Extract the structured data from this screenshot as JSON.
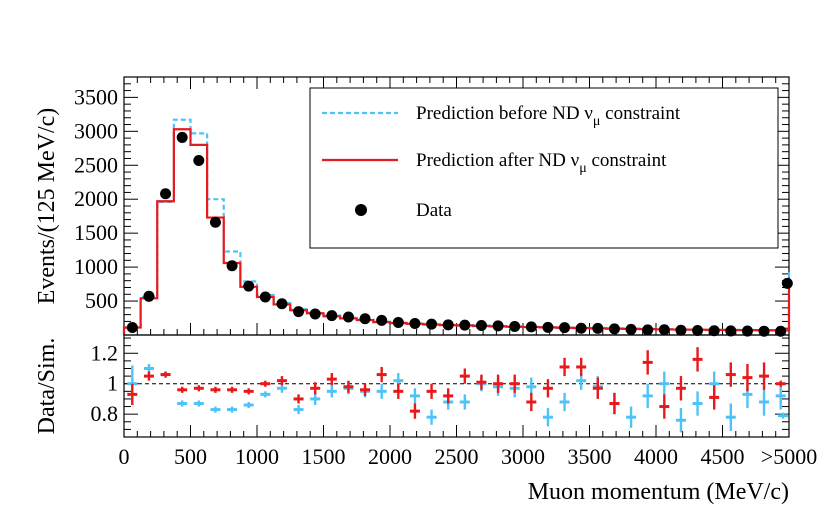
{
  "chart_data": {
    "type": "line",
    "title": "",
    "xlabel": "Muon momentum (MeV/c)",
    "x_tick_labels": [
      "0",
      "500",
      "1000",
      "1500",
      "2000",
      "2500",
      "3000",
      "3500",
      "4000",
      "4500",
      ">5000"
    ],
    "x_tick_values": [
      0,
      500,
      1000,
      1500,
      2000,
      2500,
      3000,
      3500,
      4000,
      4500,
      5000
    ],
    "xlim": [
      0,
      5000
    ],
    "bin_width": 125,
    "overflow_bin_label": ">5000",
    "colors": {
      "before": "#4fc3f7",
      "after": "#e8191a",
      "data": "#000000",
      "reference": "#000000"
    },
    "top_panel": {
      "ylabel": "Events/(125 MeV/c)",
      "ylim": [
        0,
        3800
      ],
      "y_tick_labels": [
        "500",
        "1000",
        "1500",
        "2000",
        "2500",
        "3000",
        "3500"
      ],
      "y_tick_values": [
        500,
        1000,
        1500,
        2000,
        2500,
        3000,
        3500
      ],
      "legend": {
        "placement": "top-right",
        "entries": [
          {
            "series": "before",
            "label": "Prediction before ND ν",
            "sub": "μ",
            "suffix": " constraint"
          },
          {
            "series": "after",
            "label": "Prediction after ND ν",
            "sub": "μ",
            "suffix": " constraint"
          },
          {
            "series": "data",
            "label": "Data",
            "sub": "",
            "suffix": ""
          }
        ]
      },
      "series": [
        {
          "name": "before",
          "style": "dashed-histogram",
          "values": [
            110,
            560,
            1960,
            3170,
            2970,
            2000,
            1230,
            790,
            590,
            470,
            380,
            330,
            285,
            255,
            225,
            195,
            180,
            170,
            160,
            150,
            145,
            138,
            130,
            125,
            120,
            115,
            110,
            105,
            100,
            96,
            92,
            88,
            85,
            82,
            80,
            78,
            76,
            73,
            71,
            69,
            950
          ]
        },
        {
          "name": "after",
          "style": "solid-histogram",
          "values": [
            110,
            540,
            1970,
            3030,
            2800,
            1730,
            1060,
            710,
            560,
            450,
            365,
            320,
            275,
            245,
            220,
            190,
            175,
            165,
            155,
            145,
            140,
            133,
            127,
            122,
            117,
            112,
            107,
            103,
            98,
            94,
            90,
            86,
            83,
            80,
            78,
            76,
            74,
            72,
            70,
            68,
            770
          ]
        },
        {
          "name": "data",
          "style": "markers",
          "values": [
            110,
            570,
            2080,
            2910,
            2570,
            1660,
            1020,
            720,
            560,
            460,
            345,
            310,
            285,
            265,
            240,
            215,
            185,
            170,
            160,
            150,
            145,
            140,
            135,
            125,
            120,
            112,
            108,
            100,
            97,
            90,
            82,
            76,
            78,
            70,
            66,
            62,
            60,
            58,
            56,
            55,
            760
          ]
        }
      ]
    },
    "bottom_panel": {
      "ylabel": "Data/Sim.",
      "ylim": [
        0.65,
        1.32
      ],
      "y_tick_labels": [
        "0.8",
        "1",
        "1.2"
      ],
      "y_tick_values": [
        0.8,
        1.0,
        1.2
      ],
      "reference_line": 1.0,
      "series": [
        {
          "name": "before",
          "values": [
            1.0,
            1.1,
            1.06,
            0.87,
            0.87,
            0.83,
            0.83,
            0.86,
            0.93,
            0.97,
            0.83,
            0.9,
            0.95,
            0.97,
            0.95,
            0.95,
            1.02,
            0.92,
            0.78,
            0.88,
            0.88,
            1.0,
            0.98,
            0.97,
            0.98,
            0.78,
            0.88,
            1.02,
            0.98,
            0.87,
            0.78,
            0.92,
            1.0,
            0.76,
            0.87,
            1.0,
            0.78,
            0.93,
            0.88,
            0.92,
            0.79
          ],
          "errors": [
            0.12,
            0.03,
            0.02,
            0.02,
            0.02,
            0.02,
            0.02,
            0.02,
            0.02,
            0.03,
            0.03,
            0.04,
            0.04,
            0.04,
            0.04,
            0.05,
            0.05,
            0.05,
            0.05,
            0.05,
            0.05,
            0.05,
            0.06,
            0.06,
            0.06,
            0.06,
            0.06,
            0.06,
            0.07,
            0.07,
            0.07,
            0.08,
            0.08,
            0.08,
            0.08,
            0.08,
            0.09,
            0.09,
            0.09,
            0.09,
            0.02
          ]
        },
        {
          "name": "after",
          "values": [
            0.93,
            1.05,
            1.06,
            0.96,
            0.97,
            0.96,
            0.96,
            0.95,
            1.0,
            1.02,
            0.9,
            0.97,
            1.03,
            0.98,
            0.96,
            1.06,
            0.95,
            0.82,
            0.95,
            0.92,
            1.05,
            1.01,
            1.0,
            1.0,
            0.88,
            0.97,
            1.11,
            1.11,
            0.97,
            0.87,
            1.14,
            0.85,
            0.97,
            1.16,
            0.91,
            1.06,
            1.04,
            1.05,
            1.0
          ],
          "x_bins": [
            0,
            1,
            2,
            3,
            4,
            5,
            6,
            7,
            8,
            9,
            10,
            11,
            12,
            13,
            14,
            15,
            16,
            17,
            18,
            19,
            20,
            21,
            22,
            23,
            24,
            25,
            26,
            27,
            28,
            29,
            31,
            32,
            33,
            34,
            35,
            36,
            37,
            38,
            39
          ],
          "errors": [
            0.07,
            0.03,
            0.02,
            0.02,
            0.02,
            0.02,
            0.02,
            0.02,
            0.02,
            0.03,
            0.03,
            0.04,
            0.04,
            0.04,
            0.04,
            0.05,
            0.05,
            0.05,
            0.05,
            0.05,
            0.05,
            0.05,
            0.06,
            0.06,
            0.06,
            0.06,
            0.06,
            0.06,
            0.07,
            0.07,
            0.08,
            0.08,
            0.08,
            0.08,
            0.08,
            0.08,
            0.09,
            0.09,
            0.02
          ]
        }
      ]
    }
  }
}
